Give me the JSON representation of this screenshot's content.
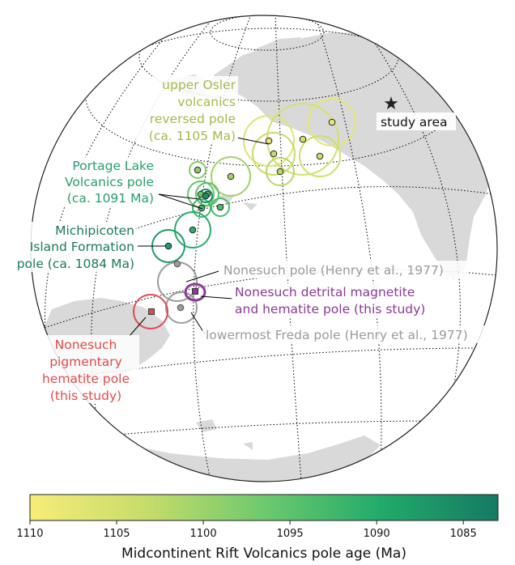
{
  "map": {
    "projection": "orthographic",
    "study_area_label": "study area",
    "colors": {
      "land": "#d9d9d9",
      "graticule": "#000000",
      "osler": "#a9b84b",
      "portage": "#27a06b",
      "michipicoten": "#1a7a5e",
      "henry": "#9b9b9b",
      "detrital": "#8b3a96",
      "pigmentary": "#e34a4a"
    },
    "labels": {
      "osler": [
        "upper Osler",
        "volcanics",
        "reversed pole",
        "(ca. 1105 Ma)"
      ],
      "portage": [
        "Portage Lake",
        "Volcanics pole",
        "(ca. 1091 Ma)"
      ],
      "michipicoten": [
        "Michipicoten",
        "Island Formation",
        "pole (ca. 1084 Ma)"
      ],
      "nonesuch_henry": "Nonesuch pole (Henry et al., 1977)",
      "detrital": [
        "Nonesuch detrital magnetite",
        "and hematite pole (this study)"
      ],
      "freda": "lowermost Freda pole (Henry et al., 1977)",
      "pigmentary": [
        "Nonesuch",
        "pigmentary",
        "hematite pole",
        "(this study)"
      ]
    },
    "poles": [
      {
        "group": "osler",
        "age_ma": 1107.5
      },
      {
        "group": "osler",
        "age_ma": 1108.2
      },
      {
        "group": "osler",
        "age_ma": 1106.3
      },
      {
        "group": "osler",
        "age_ma": 1105.6
      },
      {
        "group": "osler",
        "age_ma": 1104.9
      },
      {
        "group": "osler",
        "age_ma": 1103.4
      },
      {
        "group": "portage",
        "age_ma": 1101.5
      },
      {
        "group": "portage",
        "age_ma": 1099.8
      },
      {
        "group": "portage",
        "age_ma": 1097.3
      },
      {
        "group": "portage",
        "age_ma": 1096.5
      },
      {
        "group": "portage",
        "age_ma": 1094.6
      },
      {
        "group": "portage",
        "age_ma": 1093.6
      },
      {
        "group": "portage",
        "age_ma": 1091.0
      },
      {
        "group": "michipicoten",
        "age_ma": 1087.8
      },
      {
        "group": "michipicoten",
        "age_ma": 1085.3
      }
    ],
    "reference_poles": [
      {
        "name": "Nonesuch pole (Henry et al., 1977)",
        "marker": "circle",
        "color": "#9b9b9b"
      },
      {
        "name": "Nonesuch detrital magnetite and hematite pole (this study)",
        "marker": "square",
        "color": "#8b3a96"
      },
      {
        "name": "lowermost Freda pole (Henry et al., 1977)",
        "marker": "circle",
        "color": "#9b9b9b"
      },
      {
        "name": "Nonesuch pigmentary hematite pole (this study)",
        "marker": "square",
        "color": "#e34a4a"
      }
    ]
  },
  "colorbar": {
    "label": "Midcontinent Rift Volcanics pole age (Ma)",
    "range": [
      1110,
      1083
    ],
    "ticks": [
      "1110",
      "1105",
      "1100",
      "1095",
      "1090",
      "1085"
    ],
    "tick_values": [
      1110,
      1105,
      1100,
      1095,
      1090,
      1085
    ],
    "colormap_stops": [
      "#f7ed78",
      "#b9d667",
      "#5cc36d",
      "#21a86a",
      "#1a7f63"
    ]
  }
}
